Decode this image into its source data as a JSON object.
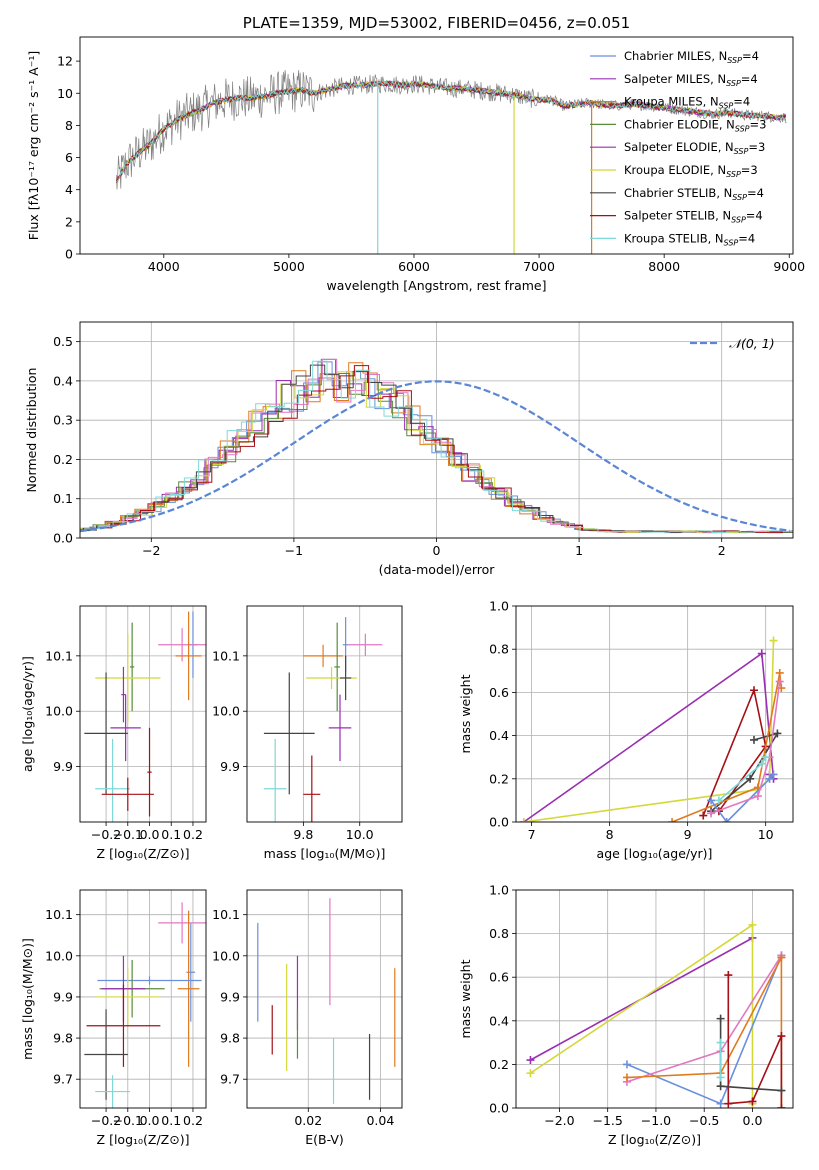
{
  "colors": [
    "#6a8fdc",
    "#9a2fb2",
    "#e07a1f",
    "#5a8c3a",
    "#9a2fb2",
    "#d4d83a",
    "#444444",
    "#a50f15",
    "#7fd8d8"
  ],
  "chart_data": [
    {
      "id": "spectrum",
      "type": "line",
      "title": "PLATE=1359, MJD=53002, FIBERID=0456, z=0.051",
      "xlabel": "wavelength [Angstrom, rest frame]",
      "ylabel": "Flux [fλ10⁻¹⁷ erg cm⁻² s⁻¹ A⁻¹]",
      "xlim": [
        3330,
        9030
      ],
      "ylim": [
        0,
        13.5
      ],
      "xticks": [
        4000,
        5000,
        6000,
        7000,
        8000,
        9000
      ],
      "yticks": [
        0,
        2,
        4,
        6,
        8,
        10,
        12
      ],
      "grid": false,
      "legend_position": "right",
      "series": [
        {
          "name": "Chabrier MILES, N_SSP=4",
          "color": "#6a8fdc"
        },
        {
          "name": "Salpeter MILES, N_SSP=4",
          "color": "#9a2fb2"
        },
        {
          "name": "Kroupa MILES, N_SSP=4",
          "color": "#e07a1f"
        },
        {
          "name": "Chabrier ELODIE, N_SSP=3",
          "color": "#5a8c3a"
        },
        {
          "name": "Salpeter ELODIE, N_SSP=3",
          "color": "#9a2fb2"
        },
        {
          "name": "Kroupa ELODIE, N_SSP=3",
          "color": "#d4d83a"
        },
        {
          "name": "Chabrier STELIB, N_SSP=4",
          "color": "#444444"
        },
        {
          "name": "Salpeter STELIB, N_SSP=4",
          "color": "#a50f15"
        },
        {
          "name": "Kroupa STELIB, N_SSP=4",
          "color": "#7fd8d8"
        }
      ],
      "continuum": [
        [
          3600,
          4.2
        ],
        [
          3700,
          5.6
        ],
        [
          3800,
          6.3
        ],
        [
          3900,
          6.9
        ],
        [
          4000,
          7.8
        ],
        [
          4100,
          8.3
        ],
        [
          4200,
          8.7
        ],
        [
          4300,
          9.0
        ],
        [
          4400,
          9.4
        ],
        [
          4500,
          9.6
        ],
        [
          4600,
          9.7
        ],
        [
          4700,
          9.7
        ],
        [
          4800,
          9.8
        ],
        [
          4900,
          10.0
        ],
        [
          5000,
          10.1
        ],
        [
          5100,
          10.2
        ],
        [
          5200,
          10.0
        ],
        [
          5300,
          10.2
        ],
        [
          5400,
          10.4
        ],
        [
          5500,
          10.5
        ],
        [
          5600,
          10.5
        ],
        [
          5700,
          10.6
        ],
        [
          5800,
          10.6
        ],
        [
          5900,
          10.5
        ],
        [
          6000,
          10.6
        ],
        [
          6100,
          10.5
        ],
        [
          6200,
          10.4
        ],
        [
          6300,
          10.3
        ],
        [
          6400,
          10.3
        ],
        [
          6500,
          10.2
        ],
        [
          6600,
          10.1
        ],
        [
          6700,
          10.0
        ],
        [
          6800,
          9.9
        ],
        [
          6900,
          9.7
        ],
        [
          7000,
          9.6
        ],
        [
          7100,
          9.6
        ],
        [
          7200,
          9.2
        ],
        [
          7300,
          9.3
        ],
        [
          7400,
          9.4
        ],
        [
          7500,
          9.3
        ],
        [
          7600,
          9.2
        ],
        [
          7700,
          9.3
        ],
        [
          7800,
          9.3
        ],
        [
          7900,
          9.2
        ],
        [
          8000,
          9.1
        ],
        [
          8100,
          9.0
        ],
        [
          8200,
          8.9
        ],
        [
          8300,
          8.8
        ],
        [
          8400,
          8.7
        ],
        [
          8500,
          8.8
        ],
        [
          8600,
          8.7
        ],
        [
          8700,
          8.6
        ],
        [
          8800,
          8.6
        ],
        [
          8900,
          8.5
        ]
      ]
    },
    {
      "id": "residuals",
      "type": "line",
      "xlabel": "(data-model)/error",
      "ylabel": "Normed distribution",
      "xlim": [
        -2.5,
        2.5
      ],
      "ylim": [
        0,
        0.55
      ],
      "xticks": [
        -2,
        -1,
        0,
        1,
        2
      ],
      "yticks": [
        0.0,
        0.1,
        0.2,
        0.3,
        0.4,
        0.5
      ],
      "grid": true,
      "legend": "𝒩(0, 1)",
      "legend_position": "top-right",
      "hist_bin_width": 0.1,
      "hist_base": [
        0.02,
        0.023,
        0.026,
        0.03,
        0.035,
        0.04,
        0.045,
        0.05,
        0.058,
        0.066,
        0.075,
        0.085,
        0.095,
        0.105,
        0.118,
        0.132,
        0.145,
        0.16,
        0.175,
        0.19,
        0.205,
        0.222,
        0.24,
        0.258,
        0.275,
        0.292,
        0.31,
        0.325,
        0.34,
        0.352,
        0.365,
        0.375,
        0.385,
        0.392,
        0.398,
        0.4,
        0.402,
        0.4,
        0.398,
        0.393,
        0.388,
        0.378,
        0.368,
        0.356,
        0.343,
        0.33,
        0.315,
        0.3,
        0.283,
        0.266,
        0.25,
        0.232,
        0.215,
        0.198,
        0.182,
        0.167,
        0.152,
        0.138,
        0.125,
        0.112,
        0.1,
        0.089,
        0.078,
        0.069,
        0.061,
        0.053,
        0.046,
        0.04,
        0.035,
        0.03,
        0.026,
        0.023,
        0.02,
        0.019,
        0.018,
        0.017,
        0.016,
        0.016,
        0.016,
        0.016,
        0.016,
        0.016,
        0.016,
        0.016,
        0.016,
        0.016,
        0.016,
        0.016,
        0.016,
        0.016,
        0.016,
        0.016,
        0.016,
        0.016,
        0.016,
        0.016,
        0.016,
        0.016,
        0.016,
        0.016
      ],
      "histogram_series": [
        {
          "name": "Chabrier MILES, N_SSP=4",
          "color": "#6a8fdc"
        },
        {
          "name": "Salpeter MILES, N_SSP=4",
          "color": "#9a2fb2"
        },
        {
          "name": "Kroupa MILES, N_SSP=4",
          "color": "#e07a1f"
        },
        {
          "name": "Chabrier ELODIE, N_SSP=3",
          "color": "#5a8c3a"
        },
        {
          "name": "Salpeter ELODIE, N_SSP=3",
          "color": "#e377c2"
        },
        {
          "name": "Kroupa ELODIE, N_SSP=3",
          "color": "#d4d83a"
        },
        {
          "name": "Chabrier STELIB, N_SSP=4",
          "color": "#444444"
        },
        {
          "name": "Salpeter STELIB, N_SSP=4",
          "color": "#a50f15"
        },
        {
          "name": "Kroupa STELIB, N_SSP=4",
          "color": "#7fd8d8"
        }
      ]
    },
    {
      "id": "age-vs-Z",
      "type": "scatter",
      "xlabel": "Z [log₁₀(Z/Z⊙)]",
      "ylabel": "age  [log₁₀(age/yr)]",
      "xlim": [
        -0.32,
        0.26
      ],
      "ylim": [
        9.8,
        10.19
      ],
      "xticks": [
        -0.2,
        -0.1,
        0.0,
        0.1,
        0.2
      ],
      "yticks": [
        9.9,
        10.0,
        10.1
      ],
      "grid": true,
      "points": [
        {
          "x": 0.2,
          "y": 10.12,
          "xerr": 0.02,
          "yerr": 0.06,
          "color": "#6a8fdc"
        },
        {
          "x": 0.15,
          "y": 10.12,
          "xerr": 0.11,
          "yerr": 0.03,
          "color": "#e377c2"
        },
        {
          "x": 0.18,
          "y": 10.1,
          "xerr": 0.06,
          "yerr": 0.08,
          "color": "#e07a1f"
        },
        {
          "x": -0.08,
          "y": 10.08,
          "xerr": 0.01,
          "yerr": 0.08,
          "color": "#5a8c3a"
        },
        {
          "x": -0.1,
          "y": 10.06,
          "xerr": 0.15,
          "yerr": 0.08,
          "color": "#d4d83a"
        },
        {
          "x": -0.12,
          "y": 10.03,
          "xerr": 0.01,
          "yerr": 0.05,
          "color": "#9a2fb2"
        },
        {
          "x": -0.11,
          "y": 9.97,
          "xerr": 0.07,
          "yerr": 0.06,
          "color": "#9a2fb2"
        },
        {
          "x": -0.2,
          "y": 9.96,
          "xerr": 0.1,
          "yerr": 0.11,
          "color": "#444444"
        },
        {
          "x": -0.17,
          "y": 9.86,
          "xerr": 0.08,
          "yerr": 0.09,
          "color": "#7fd8d8"
        },
        {
          "x": -0.1,
          "y": 9.85,
          "xerr": 0.12,
          "yerr": 0.03,
          "color": "#a50f15"
        },
        {
          "x": 0.0,
          "y": 9.89,
          "xerr": 0.01,
          "yerr": 0.08,
          "color": "#a50f15"
        }
      ]
    },
    {
      "id": "age-vs-mass",
      "type": "scatter",
      "xlabel": "mass [log₁₀(M/M⊙)]",
      "ylabel": "",
      "xlim": [
        9.6,
        10.15
      ],
      "ylim": [
        9.8,
        10.19
      ],
      "xticks": [
        9.8,
        10.0
      ],
      "yticks": [
        9.9,
        10.0,
        10.1
      ],
      "grid": true,
      "points": [
        {
          "x": 9.95,
          "y": 10.12,
          "xerr": 0.01,
          "yerr": 0.05,
          "color": "#6a8fdc"
        },
        {
          "x": 10.02,
          "y": 10.12,
          "xerr": 0.06,
          "yerr": 0.02,
          "color": "#e377c2"
        },
        {
          "x": 9.87,
          "y": 10.1,
          "xerr": 0.07,
          "yerr": 0.02,
          "color": "#e07a1f"
        },
        {
          "x": 9.92,
          "y": 10.08,
          "xerr": 0.01,
          "yerr": 0.08,
          "color": "#5a8c3a"
        },
        {
          "x": 9.9,
          "y": 10.06,
          "xerr": 0.09,
          "yerr": 0.02,
          "color": "#d4d83a"
        },
        {
          "x": 9.95,
          "y": 10.06,
          "xerr": 0.02,
          "yerr": 0.04,
          "color": "#444444"
        },
        {
          "x": 9.93,
          "y": 9.97,
          "xerr": 0.04,
          "yerr": 0.06,
          "color": "#9a2fb2"
        },
        {
          "x": 9.75,
          "y": 9.96,
          "xerr": 0.09,
          "yerr": 0.11,
          "color": "#444444"
        },
        {
          "x": 9.7,
          "y": 9.86,
          "xerr": 0.04,
          "yerr": 0.09,
          "color": "#7fd8d8"
        },
        {
          "x": 9.83,
          "y": 9.85,
          "xerr": 0.03,
          "yerr": 0.07,
          "color": "#a50f15"
        }
      ]
    },
    {
      "id": "mass-weight-vs-age",
      "type": "line",
      "xlabel": "age  [log₁₀(age/yr)]",
      "ylabel": "mass weight",
      "xlim": [
        6.8,
        10.35
      ],
      "ylim": [
        0.0,
        1.0
      ],
      "xticks": [
        7,
        8,
        9,
        10
      ],
      "yticks": [
        0.0,
        0.2,
        0.4,
        0.6,
        0.8,
        1.0
      ],
      "grid": true,
      "series": [
        {
          "color": "#9a2fb2",
          "x": [
            6.9,
            9.95,
            10.1,
            10.05
          ],
          "y": [
            0.0,
            0.78,
            0.2,
            0.22
          ]
        },
        {
          "color": "#d4d83a",
          "x": [
            6.9,
            9.9,
            10.05,
            10.1
          ],
          "y": [
            0.0,
            0.15,
            0.2,
            0.84
          ]
        },
        {
          "color": "#a50f15",
          "x": [
            9.2,
            9.85,
            10.0,
            9.4
          ],
          "y": [
            0.03,
            0.61,
            0.35,
            0.05
          ]
        },
        {
          "color": "#444444",
          "x": [
            9.3,
            9.8,
            10.15,
            9.85
          ],
          "y": [
            0.05,
            0.2,
            0.41,
            0.38
          ]
        },
        {
          "color": "#e07a1f",
          "x": [
            8.8,
            9.9,
            10.18,
            10.2
          ],
          "y": [
            0.0,
            0.16,
            0.69,
            0.62
          ]
        },
        {
          "color": "#6a8fdc",
          "x": [
            9.3,
            9.5,
            10.05,
            10.1
          ],
          "y": [
            0.1,
            0.0,
            0.2,
            0.22
          ]
        },
        {
          "color": "#e377c2",
          "x": [
            9.3,
            9.9,
            10.05,
            10.18
          ],
          "y": [
            0.04,
            0.12,
            0.3,
            0.65
          ]
        },
        {
          "color": "#7fd8d8",
          "x": [
            9.4,
            9.95,
            10.0
          ],
          "y": [
            0.1,
            0.27,
            0.3
          ]
        }
      ]
    },
    {
      "id": "mass-vs-Z",
      "type": "scatter",
      "xlabel": "Z [log₁₀(Z/Z⊙)]",
      "ylabel": "mass [log₁₀(M/M⊙)]",
      "xlim": [
        -0.32,
        0.26
      ],
      "ylim": [
        9.63,
        10.16
      ],
      "xticks": [
        -0.2,
        -0.1,
        0.0,
        0.1,
        0.2
      ],
      "yticks": [
        9.7,
        9.8,
        9.9,
        10.0,
        10.1
      ],
      "grid": true,
      "points": [
        {
          "x": 0.19,
          "y": 9.96,
          "xerr": 0.02,
          "yerr": 0.12,
          "color": "#6a8fdc"
        },
        {
          "x": 0.15,
          "y": 10.08,
          "xerr": 0.11,
          "yerr": 0.05,
          "color": "#e377c2"
        },
        {
          "x": 0.18,
          "y": 9.92,
          "xerr": 0.05,
          "yerr": 0.19,
          "color": "#e07a1f"
        },
        {
          "x": 0.0,
          "y": 9.94,
          "xerr": 0.24,
          "yerr": 0.01,
          "color": "#6a8fdc"
        },
        {
          "x": -0.08,
          "y": 9.92,
          "xerr": 0.15,
          "yerr": 0.07,
          "color": "#5a8c3a"
        },
        {
          "x": -0.1,
          "y": 9.9,
          "xerr": 0.15,
          "yerr": 0.07,
          "color": "#d4d83a"
        },
        {
          "x": -0.12,
          "y": 9.92,
          "xerr": 0.1,
          "yerr": 0.08,
          "color": "#9a2fb2"
        },
        {
          "x": -0.12,
          "y": 9.83,
          "xerr": 0.17,
          "yerr": 0.1,
          "color": "#a50f15"
        },
        {
          "x": -0.2,
          "y": 9.76,
          "xerr": 0.1,
          "yerr": 0.11,
          "color": "#444444"
        },
        {
          "x": -0.17,
          "y": 9.67,
          "xerr": 0.08,
          "yerr": 0.04,
          "color": "#7fd8d8"
        }
      ]
    },
    {
      "id": "mass-vs-EBV",
      "type": "scatter",
      "xlabel": "E(B-V)",
      "ylabel": "",
      "xlim": [
        0.003,
        0.046
      ],
      "ylim": [
        9.63,
        10.16
      ],
      "xticks": [
        0.02,
        0.04
      ],
      "yticks": [
        9.7,
        9.8,
        9.9,
        10.0,
        10.1
      ],
      "grid": true,
      "points": [
        {
          "x": 0.006,
          "y": 9.96,
          "yerr": 0.12,
          "color": "#6a8fdc"
        },
        {
          "x": 0.01,
          "y": 9.82,
          "yerr": 0.06,
          "color": "#a50f15"
        },
        {
          "x": 0.014,
          "y": 9.85,
          "yerr": 0.13,
          "color": "#d4d83a"
        },
        {
          "x": 0.017,
          "y": 9.91,
          "yerr": 0.09,
          "color": "#9a2fb2"
        },
        {
          "x": 0.017,
          "y": 9.81,
          "yerr": 0.06,
          "color": "#5a8c3a"
        },
        {
          "x": 0.026,
          "y": 10.01,
          "yerr": 0.13,
          "color": "#e377c2"
        },
        {
          "x": 0.027,
          "y": 9.72,
          "yerr": 0.08,
          "color": "#7fd8d8"
        },
        {
          "x": 0.037,
          "y": 9.73,
          "yerr": 0.08,
          "color": "#444444"
        },
        {
          "x": 0.044,
          "y": 9.85,
          "yerr": 0.12,
          "color": "#e07a1f"
        }
      ]
    },
    {
      "id": "mass-weight-vs-Z",
      "type": "line",
      "xlabel": "Z [log₁₀(Z/Z⊙)]",
      "ylabel": "mass weight",
      "xlim": [
        -2.45,
        0.42
      ],
      "ylim": [
        0.0,
        1.0
      ],
      "xticks": [
        -2.0,
        -1.5,
        -1.0,
        -0.5,
        0.0
      ],
      "yticks": [
        0.0,
        0.2,
        0.4,
        0.6,
        0.8,
        1.0
      ],
      "grid": true,
      "series": [
        {
          "color": "#9a2fb2",
          "x": [
            -2.3,
            0.0
          ],
          "y": [
            0.22,
            0.78
          ]
        },
        {
          "color": "#d4d83a",
          "x": [
            -2.3,
            0.0,
            0.0
          ],
          "y": [
            0.16,
            0.84,
            0.02
          ]
        },
        {
          "color": "#6a8fdc",
          "x": [
            -1.3,
            -0.33,
            0.3
          ],
          "y": [
            0.2,
            0.02,
            0.7
          ]
        },
        {
          "color": "#e377c2",
          "x": [
            -1.3,
            -0.33,
            0.3
          ],
          "y": [
            0.12,
            0.26,
            0.7
          ]
        },
        {
          "color": "#e07a1f",
          "x": [
            -1.3,
            -0.33,
            0.3,
            0.3
          ],
          "y": [
            0.14,
            0.16,
            0.69,
            0.0
          ]
        },
        {
          "color": "#a50f15",
          "x": [
            -0.25,
            -0.25,
            0.0,
            0.3,
            0.3
          ],
          "y": [
            0.61,
            0.02,
            0.03,
            0.33,
            0.0
          ]
        },
        {
          "color": "#444444",
          "x": [
            -0.33,
            -0.33,
            0.3
          ],
          "y": [
            0.41,
            0.1,
            0.08
          ]
        },
        {
          "color": "#7fd8d8",
          "x": [
            -0.33,
            -0.33
          ],
          "y": [
            0.3,
            0.14
          ]
        }
      ]
    }
  ]
}
